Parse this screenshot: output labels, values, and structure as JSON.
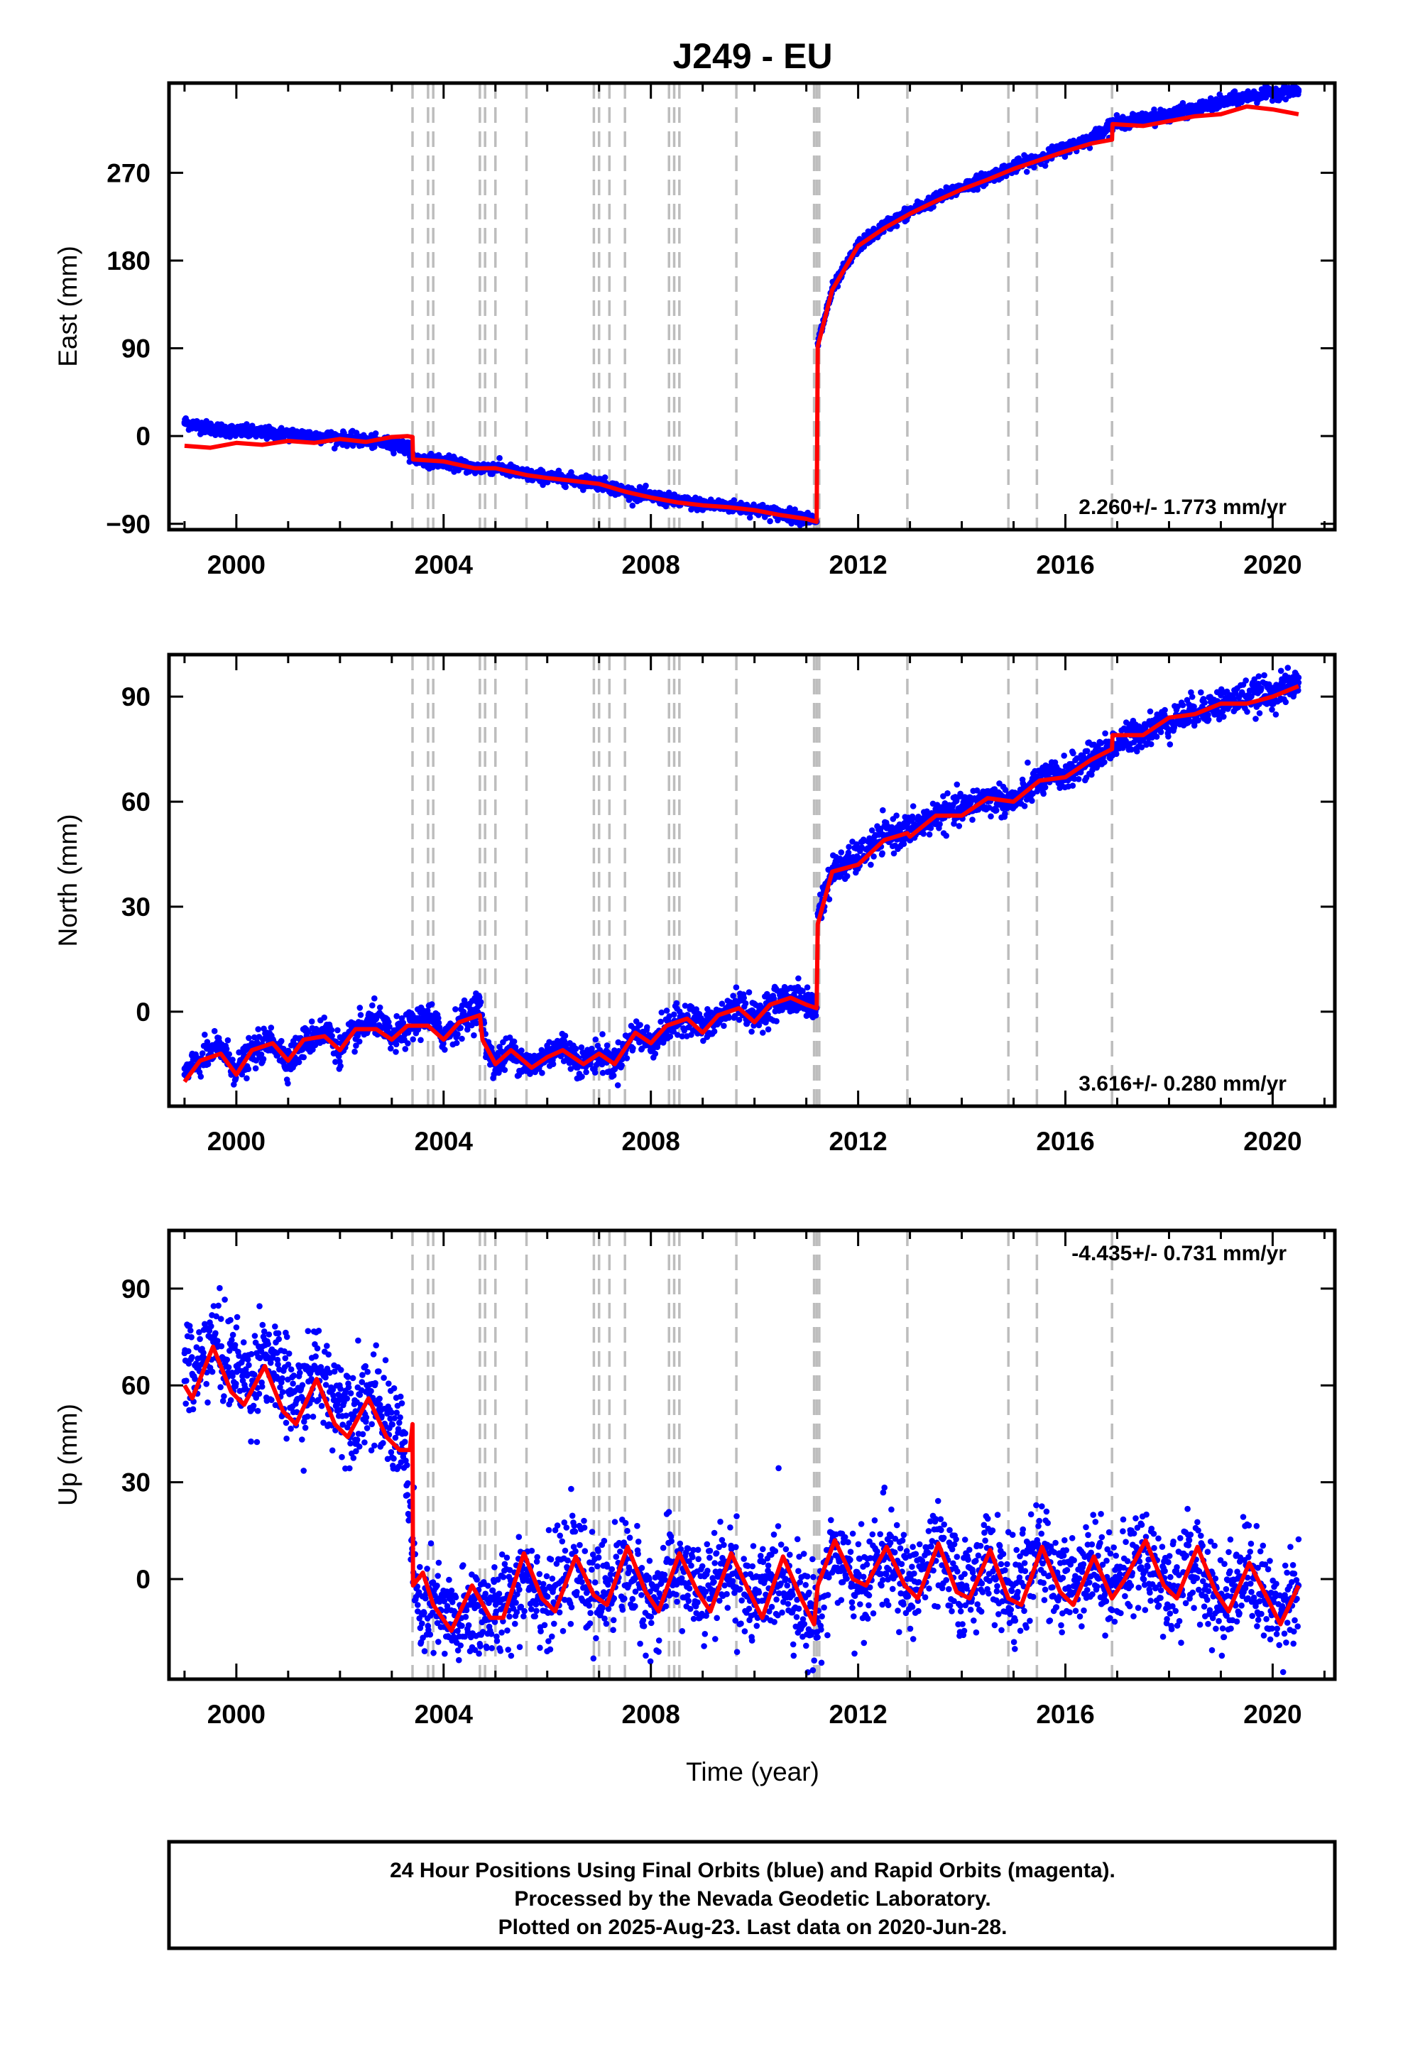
{
  "title": "J249 - EU",
  "xlabel": "Time (year)",
  "caption": [
    "24 Hour Positions Using Final Orbits (blue) and Rapid Orbits (magenta).",
    "Processed by the Nevada Geodetic Laboratory.",
    "Plotted on 2025-Aug-23. Last data on 2020-Jun-28."
  ],
  "colors": {
    "data": "#0000ff",
    "fit": "#ff0000",
    "events": "#bdbdbd",
    "frame": "#000000"
  },
  "chart_data": [
    {
      "type": "scatter",
      "panel": "East",
      "ylabel": "East (mm)",
      "xlim": [
        1998.7,
        2021.2
      ],
      "ylim": [
        -96,
        362
      ],
      "yticks": [
        -90,
        0,
        90,
        180,
        270
      ],
      "xticks": [
        2000,
        2004,
        2008,
        2012,
        2016,
        2020
      ],
      "rate_label": "2.260+/- 1.773 mm/yr",
      "rate_position": "bottom-right",
      "event_lines": [
        2003.4,
        2003.7,
        2003.8,
        2004.7,
        2004.8,
        2005.0,
        2005.6,
        2006.9,
        2007.0,
        2007.2,
        2007.5,
        2008.35,
        2008.45,
        2008.55,
        2009.65,
        2011.15,
        2011.2,
        2011.25,
        2012.95,
        2014.9,
        2015.45,
        2016.9
      ],
      "series": [
        {
          "name": "blue",
          "style": "dots",
          "x": [
            1999.0,
            1999.5,
            2000.0,
            2000.5,
            2001.0,
            2001.5,
            2002.0,
            2002.5,
            2003.0,
            2003.3,
            2003.45,
            2004.0,
            2004.6,
            2005.0,
            2005.6,
            2006.0,
            2006.5,
            2007.0,
            2007.5,
            2008.0,
            2008.5,
            2009.0,
            2009.5,
            2010.0,
            2010.5,
            2011.0,
            2011.2,
            2011.22,
            2011.5,
            2012.0,
            2012.5,
            2013.0,
            2013.5,
            2014.0,
            2014.5,
            2015.0,
            2015.5,
            2016.0,
            2016.5,
            2016.9,
            2017.5,
            2018.0,
            2018.5,
            2019.0,
            2019.5,
            2020.0,
            2020.5
          ],
          "y": [
            14,
            8,
            5,
            3,
            2,
            0,
            -2,
            -5,
            -8,
            -12,
            -24,
            -26,
            -33,
            -32,
            -40,
            -42,
            -45,
            -48,
            -57,
            -62,
            -67,
            -70,
            -72,
            -75,
            -80,
            -84,
            -88,
            95,
            150,
            195,
            215,
            230,
            243,
            255,
            265,
            276,
            285,
            295,
            305,
            320,
            325,
            330,
            335,
            342,
            348,
            352,
            355
          ]
        },
        {
          "name": "fit",
          "style": "line",
          "x": [
            1999.0,
            1999.5,
            2000.0,
            2000.5,
            2001.0,
            2001.5,
            2002.0,
            2002.5,
            2003.0,
            2003.3,
            2003.4,
            2003.41,
            2004.0,
            2004.6,
            2005.0,
            2005.6,
            2006.0,
            2006.5,
            2007.0,
            2007.5,
            2008.0,
            2008.5,
            2009.0,
            2009.5,
            2010.0,
            2010.5,
            2011.0,
            2011.2,
            2011.22,
            2011.5,
            2012.0,
            2012.5,
            2013.0,
            2013.5,
            2014.0,
            2014.5,
            2015.0,
            2015.5,
            2016.0,
            2016.5,
            2016.9,
            2016.91,
            2017.5,
            2018.0,
            2018.5,
            2019.0,
            2019.5,
            2020.0,
            2020.5
          ],
          "y": [
            -10,
            -12,
            -7,
            -9,
            -5,
            -7,
            -3,
            -6,
            -1,
            0,
            -1,
            -24,
            -26,
            -33,
            -33,
            -40,
            -43,
            -46,
            -49,
            -57,
            -63,
            -68,
            -71,
            -73,
            -76,
            -81,
            -85,
            -88,
            92,
            150,
            195,
            213,
            228,
            241,
            253,
            263,
            274,
            283,
            292,
            300,
            304,
            320,
            318,
            323,
            328,
            330,
            338,
            335,
            330
          ]
        }
      ]
    },
    {
      "type": "scatter",
      "panel": "North",
      "ylabel": "North (mm)",
      "xlim": [
        1998.7,
        2021.2
      ],
      "ylim": [
        -27,
        102
      ],
      "yticks": [
        0,
        30,
        60,
        90
      ],
      "xticks": [
        2000,
        2004,
        2008,
        2012,
        2016,
        2020
      ],
      "rate_label": "3.616+/- 0.280 mm/yr",
      "rate_position": "bottom-right",
      "event_lines": [
        2003.4,
        2003.7,
        2003.8,
        2004.7,
        2004.8,
        2005.0,
        2005.6,
        2006.9,
        2007.0,
        2007.2,
        2007.5,
        2008.35,
        2008.45,
        2008.55,
        2009.65,
        2011.15,
        2011.2,
        2011.25,
        2012.95,
        2014.9,
        2015.45,
        2016.9
      ],
      "series": [
        {
          "name": "blue",
          "style": "dots",
          "x": [
            1999.0,
            1999.3,
            1999.7,
            2000.0,
            2000.3,
            2000.7,
            2001.0,
            2001.3,
            2001.7,
            2002.0,
            2002.3,
            2002.7,
            2003.0,
            2003.3,
            2003.7,
            2004.0,
            2004.3,
            2004.7,
            2004.8,
            2005.0,
            2005.3,
            2005.7,
            2006.0,
            2006.3,
            2006.7,
            2007.0,
            2007.3,
            2007.7,
            2008.0,
            2008.3,
            2008.7,
            2009.0,
            2009.3,
            2009.7,
            2010.0,
            2010.3,
            2010.7,
            2011.0,
            2011.2,
            2011.22,
            2011.5,
            2012.0,
            2012.5,
            2013.0,
            2013.5,
            2014.0,
            2014.5,
            2015.0,
            2015.5,
            2016.0,
            2016.5,
            2016.9,
            2017.5,
            2018.0,
            2018.5,
            2019.0,
            2019.5,
            2020.0,
            2020.5
          ],
          "y": [
            -18,
            -14,
            -10,
            -17,
            -12,
            -8,
            -14,
            -9,
            -5,
            -11,
            -6,
            -2,
            -8,
            -5,
            -1,
            -7,
            -3,
            2,
            -9,
            -15,
            -11,
            -16,
            -12,
            -10,
            -15,
            -12,
            -15,
            -6,
            -9,
            -5,
            -1,
            -5,
            -2,
            3,
            -2,
            2,
            4,
            3,
            1,
            28,
            40,
            44,
            50,
            52,
            56,
            58,
            61,
            60,
            66,
            68,
            72,
            76,
            80,
            83,
            86,
            88,
            90,
            91,
            94
          ]
        },
        {
          "name": "fit",
          "style": "line",
          "x": [
            1999.0,
            1999.3,
            1999.7,
            2000.0,
            2000.3,
            2000.7,
            2001.0,
            2001.3,
            2001.7,
            2002.0,
            2002.3,
            2002.7,
            2003.0,
            2003.3,
            2003.7,
            2004.0,
            2004.3,
            2004.7,
            2004.75,
            2005.0,
            2005.3,
            2005.7,
            2006.0,
            2006.3,
            2006.7,
            2007.0,
            2007.3,
            2007.7,
            2008.0,
            2008.3,
            2008.7,
            2009.0,
            2009.3,
            2009.7,
            2010.0,
            2010.3,
            2010.7,
            2011.0,
            2011.2,
            2011.22,
            2011.5,
            2012.0,
            2012.5,
            2012.95,
            2013.0,
            2013.5,
            2014.0,
            2014.5,
            2015.0,
            2015.5,
            2016.0,
            2016.5,
            2016.9,
            2016.91,
            2017.5,
            2018.0,
            2018.5,
            2019.0,
            2019.5,
            2020.0,
            2020.5
          ],
          "y": [
            -20,
            -14,
            -12,
            -18,
            -11,
            -9,
            -14,
            -8,
            -7,
            -11,
            -5,
            -5,
            -8,
            -4,
            -4,
            -8,
            -3,
            -1,
            -8,
            -15,
            -11,
            -16,
            -13,
            -11,
            -15,
            -12,
            -15,
            -6,
            -9,
            -4,
            -2,
            -6,
            -1,
            1,
            -3,
            2,
            4,
            2,
            1,
            25,
            40,
            42,
            49,
            51,
            50,
            56,
            56,
            61,
            60,
            66,
            67,
            72,
            75,
            79,
            79,
            84,
            85,
            88,
            88,
            90,
            93
          ]
        }
      ]
    },
    {
      "type": "scatter",
      "panel": "Up",
      "ylabel": "Up (mm)",
      "xlim": [
        1998.7,
        2021.2
      ],
      "ylim": [
        -31,
        108
      ],
      "yticks": [
        0,
        30,
        60,
        90
      ],
      "xticks": [
        2000,
        2004,
        2008,
        2012,
        2016,
        2020
      ],
      "rate_label": "-4.435+/- 0.731 mm/yr",
      "rate_position": "top-right",
      "event_lines": [
        2003.4,
        2003.7,
        2003.8,
        2004.7,
        2004.8,
        2005.0,
        2005.6,
        2006.9,
        2007.0,
        2007.2,
        2007.5,
        2008.35,
        2008.45,
        2008.55,
        2009.65,
        2011.15,
        2011.2,
        2011.25,
        2012.95,
        2014.9,
        2015.45,
        2016.9
      ],
      "series": [
        {
          "name": "blue",
          "style": "dots",
          "x": [
            1999.0,
            1999.2,
            1999.5,
            1999.8,
            2000.0,
            2000.3,
            2000.5,
            2000.8,
            2001.0,
            2001.3,
            2001.5,
            2001.8,
            2002.0,
            2002.3,
            2002.5,
            2002.8,
            2003.0,
            2003.2,
            2003.5,
            2003.8,
            2004.0,
            2004.3,
            2004.6,
            2005.0,
            2005.3,
            2005.6,
            2006.0,
            2006.5,
            2007.0,
            2007.5,
            2008.0,
            2008.5,
            2009.0,
            2009.5,
            2010.0,
            2010.5,
            2011.0,
            2011.2,
            2011.5,
            2012.0,
            2012.5,
            2013.0,
            2013.5,
            2014.0,
            2014.5,
            2015.0,
            2015.5,
            2016.0,
            2016.5,
            2017.0,
            2017.5,
            2018.0,
            2018.5,
            2019.0,
            2019.5,
            2020.0,
            2020.5
          ],
          "y": [
            70,
            62,
            75,
            68,
            66,
            60,
            72,
            62,
            58,
            55,
            65,
            58,
            56,
            52,
            58,
            50,
            48,
            45,
            -10,
            -8,
            -12,
            -14,
            -9,
            -11,
            -5,
            3,
            -8,
            5,
            -6,
            5,
            -8,
            4,
            -6,
            4,
            -8,
            3,
            -10,
            -12,
            10,
            -4,
            8,
            -3,
            8,
            -4,
            6,
            -6,
            8,
            -3,
            6,
            -2,
            9,
            -4,
            6,
            -8,
            4,
            -10,
            -2
          ]
        },
        {
          "name": "fit",
          "style": "line",
          "x": [
            1999.0,
            1999.15,
            1999.55,
            1999.9,
            2000.15,
            2000.55,
            2000.9,
            2001.15,
            2001.55,
            2001.9,
            2002.15,
            2002.55,
            2002.9,
            2003.15,
            2003.35,
            2003.4,
            2003.41,
            2003.6,
            2003.8,
            2004.15,
            2004.55,
            2004.9,
            2005.15,
            2005.55,
            2005.9,
            2006.15,
            2006.55,
            2006.9,
            2007.15,
            2007.55,
            2007.9,
            2008.15,
            2008.55,
            2008.9,
            2009.15,
            2009.55,
            2009.9,
            2010.15,
            2010.55,
            2010.9,
            2011.15,
            2011.22,
            2011.55,
            2011.9,
            2012.15,
            2012.55,
            2012.9,
            2013.15,
            2013.55,
            2013.9,
            2014.15,
            2014.55,
            2014.9,
            2015.15,
            2015.55,
            2015.9,
            2016.15,
            2016.55,
            2016.9,
            2017.15,
            2017.55,
            2017.9,
            2018.15,
            2018.55,
            2018.9,
            2019.15,
            2019.55,
            2019.9,
            2020.15,
            2020.5
          ],
          "y": [
            60,
            56,
            72,
            58,
            54,
            66,
            52,
            48,
            62,
            48,
            44,
            56,
            44,
            40,
            40,
            48,
            -2,
            2,
            -8,
            -16,
            -2,
            -12,
            -12,
            8,
            -6,
            -10,
            7,
            -5,
            -8,
            10,
            -4,
            -10,
            8,
            -4,
            -10,
            8,
            -4,
            -12,
            7,
            -6,
            -14,
            -2,
            12,
            0,
            -2,
            10,
            -2,
            -6,
            11,
            -4,
            -6,
            9,
            -6,
            -8,
            10,
            -4,
            -8,
            7,
            -6,
            0,
            12,
            -2,
            -6,
            10,
            -4,
            -10,
            5,
            -6,
            -14,
            -2
          ]
        }
      ]
    }
  ]
}
